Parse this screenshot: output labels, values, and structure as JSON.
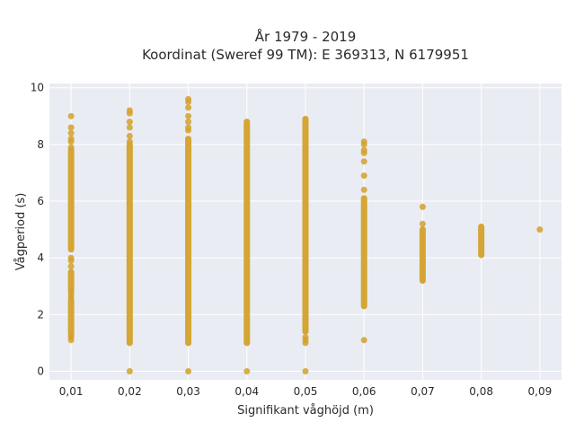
{
  "chart_data": {
    "type": "scatter",
    "title_line1": "År 1979 - 2019",
    "title_line2": "Koordinat (Sweref 99 TM): E 369313, N 6179951",
    "xlabel": "Signifikant våghöjd (m)",
    "ylabel": "Vågperiod (s)",
    "xlim": [
      0.0063,
      0.0937
    ],
    "ylim": [
      -0.3,
      10.15
    ],
    "x_ticks": [
      0.01,
      0.02,
      0.03,
      0.04,
      0.05,
      0.06,
      0.07,
      0.08,
      0.09
    ],
    "x_tick_labels": [
      "0,01",
      "0,02",
      "0,03",
      "0,04",
      "0,05",
      "0,06",
      "0,07",
      "0,08",
      "0,09"
    ],
    "y_ticks": [
      0,
      2,
      4,
      6,
      8,
      10
    ],
    "y_tick_labels": [
      "0",
      "2",
      "4",
      "6",
      "8",
      "10"
    ],
    "grid": true,
    "marker_color": "#d4a12a",
    "series": [
      {
        "columns": [
          {
            "x": 0.01,
            "dense_ranges": [
              [
                1.3,
                2.5
              ],
              [
                2.9,
                3.5
              ],
              [
                4.3,
                7.8
              ]
            ],
            "points": [
              1.1,
              1.2,
              2.6,
              2.7,
              2.8,
              3.7,
              3.9,
              4.0,
              7.9,
              8.1,
              8.2,
              8.4,
              8.6,
              9.0
            ]
          },
          {
            "x": 0.02,
            "dense_ranges": [
              [
                1.0,
                8.0
              ]
            ],
            "points": [
              0.0,
              8.1,
              8.3,
              8.6,
              8.8,
              9.1,
              9.2
            ]
          },
          {
            "x": 0.03,
            "dense_ranges": [
              [
                1.0,
                8.2
              ]
            ],
            "points": [
              0.0,
              8.5,
              8.6,
              8.8,
              9.0,
              9.3,
              9.5,
              9.6
            ]
          },
          {
            "x": 0.04,
            "dense_ranges": [
              [
                1.0,
                8.8
              ]
            ],
            "points": [
              0.0
            ]
          },
          {
            "x": 0.05,
            "dense_ranges": [
              [
                1.4,
                8.9
              ]
            ],
            "points": [
              0.0,
              1.0,
              1.1,
              1.2
            ]
          },
          {
            "x": 0.06,
            "dense_ranges": [
              [
                2.3,
                6.1
              ]
            ],
            "points": [
              1.1,
              6.4,
              6.9,
              7.4,
              7.7,
              7.8,
              8.0,
              8.1
            ]
          },
          {
            "x": 0.07,
            "dense_ranges": [
              [
                3.2,
                5.0
              ]
            ],
            "points": [
              5.2,
              5.8
            ]
          },
          {
            "x": 0.08,
            "dense_ranges": [
              [
                4.1,
                5.1
              ]
            ],
            "points": []
          },
          {
            "x": 0.09,
            "dense_ranges": [],
            "points": [
              5.0
            ]
          }
        ]
      }
    ]
  }
}
